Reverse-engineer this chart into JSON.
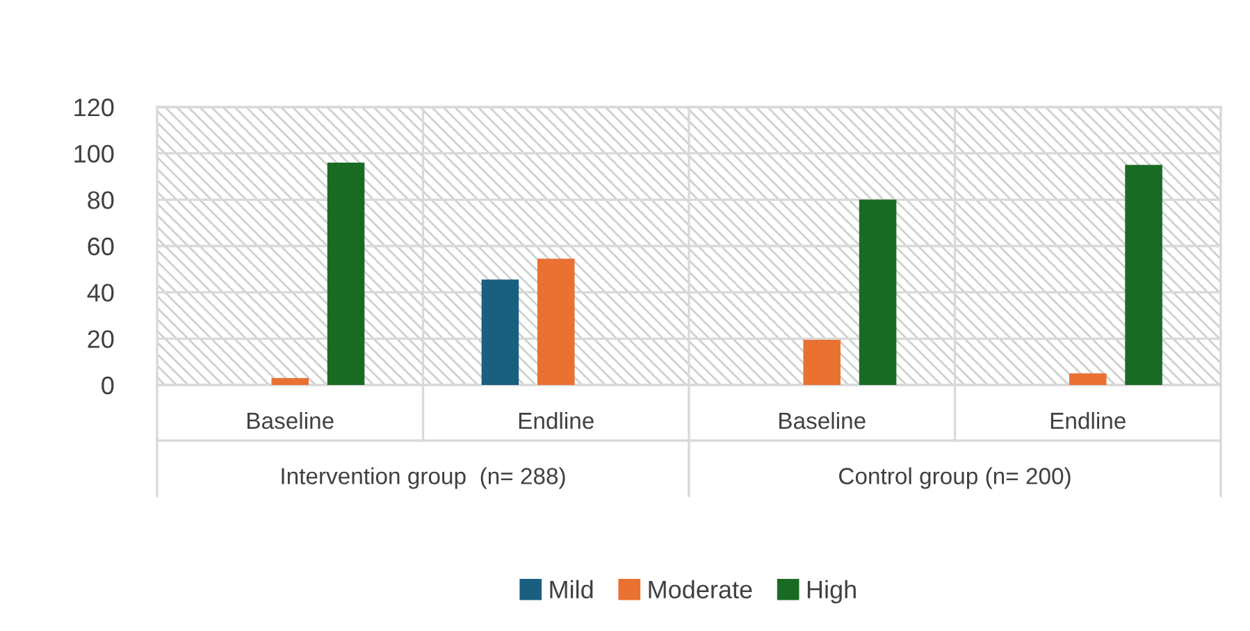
{
  "chart_data": {
    "type": "bar",
    "categories": [
      "Baseline",
      "Endline",
      "Baseline",
      "Endline"
    ],
    "series": [
      {
        "name": "Mild",
        "color": "#1a5f80",
        "values": [
          null,
          45.5,
          null,
          null
        ]
      },
      {
        "name": "Moderate",
        "color": "#e97132",
        "values": [
          3,
          54.5,
          19.5,
          5
        ]
      },
      {
        "name": "High",
        "color": "#196b24",
        "values": [
          96,
          null,
          80,
          95
        ]
      }
    ],
    "annotations": [
      "Intervention group  (n= 288)",
      "Control group (n= 200)"
    ],
    "ylim": [
      0,
      120
    ],
    "yticks": [
      0,
      20,
      40,
      60,
      80,
      100,
      120
    ],
    "grid": "y",
    "legend": "bottom"
  }
}
